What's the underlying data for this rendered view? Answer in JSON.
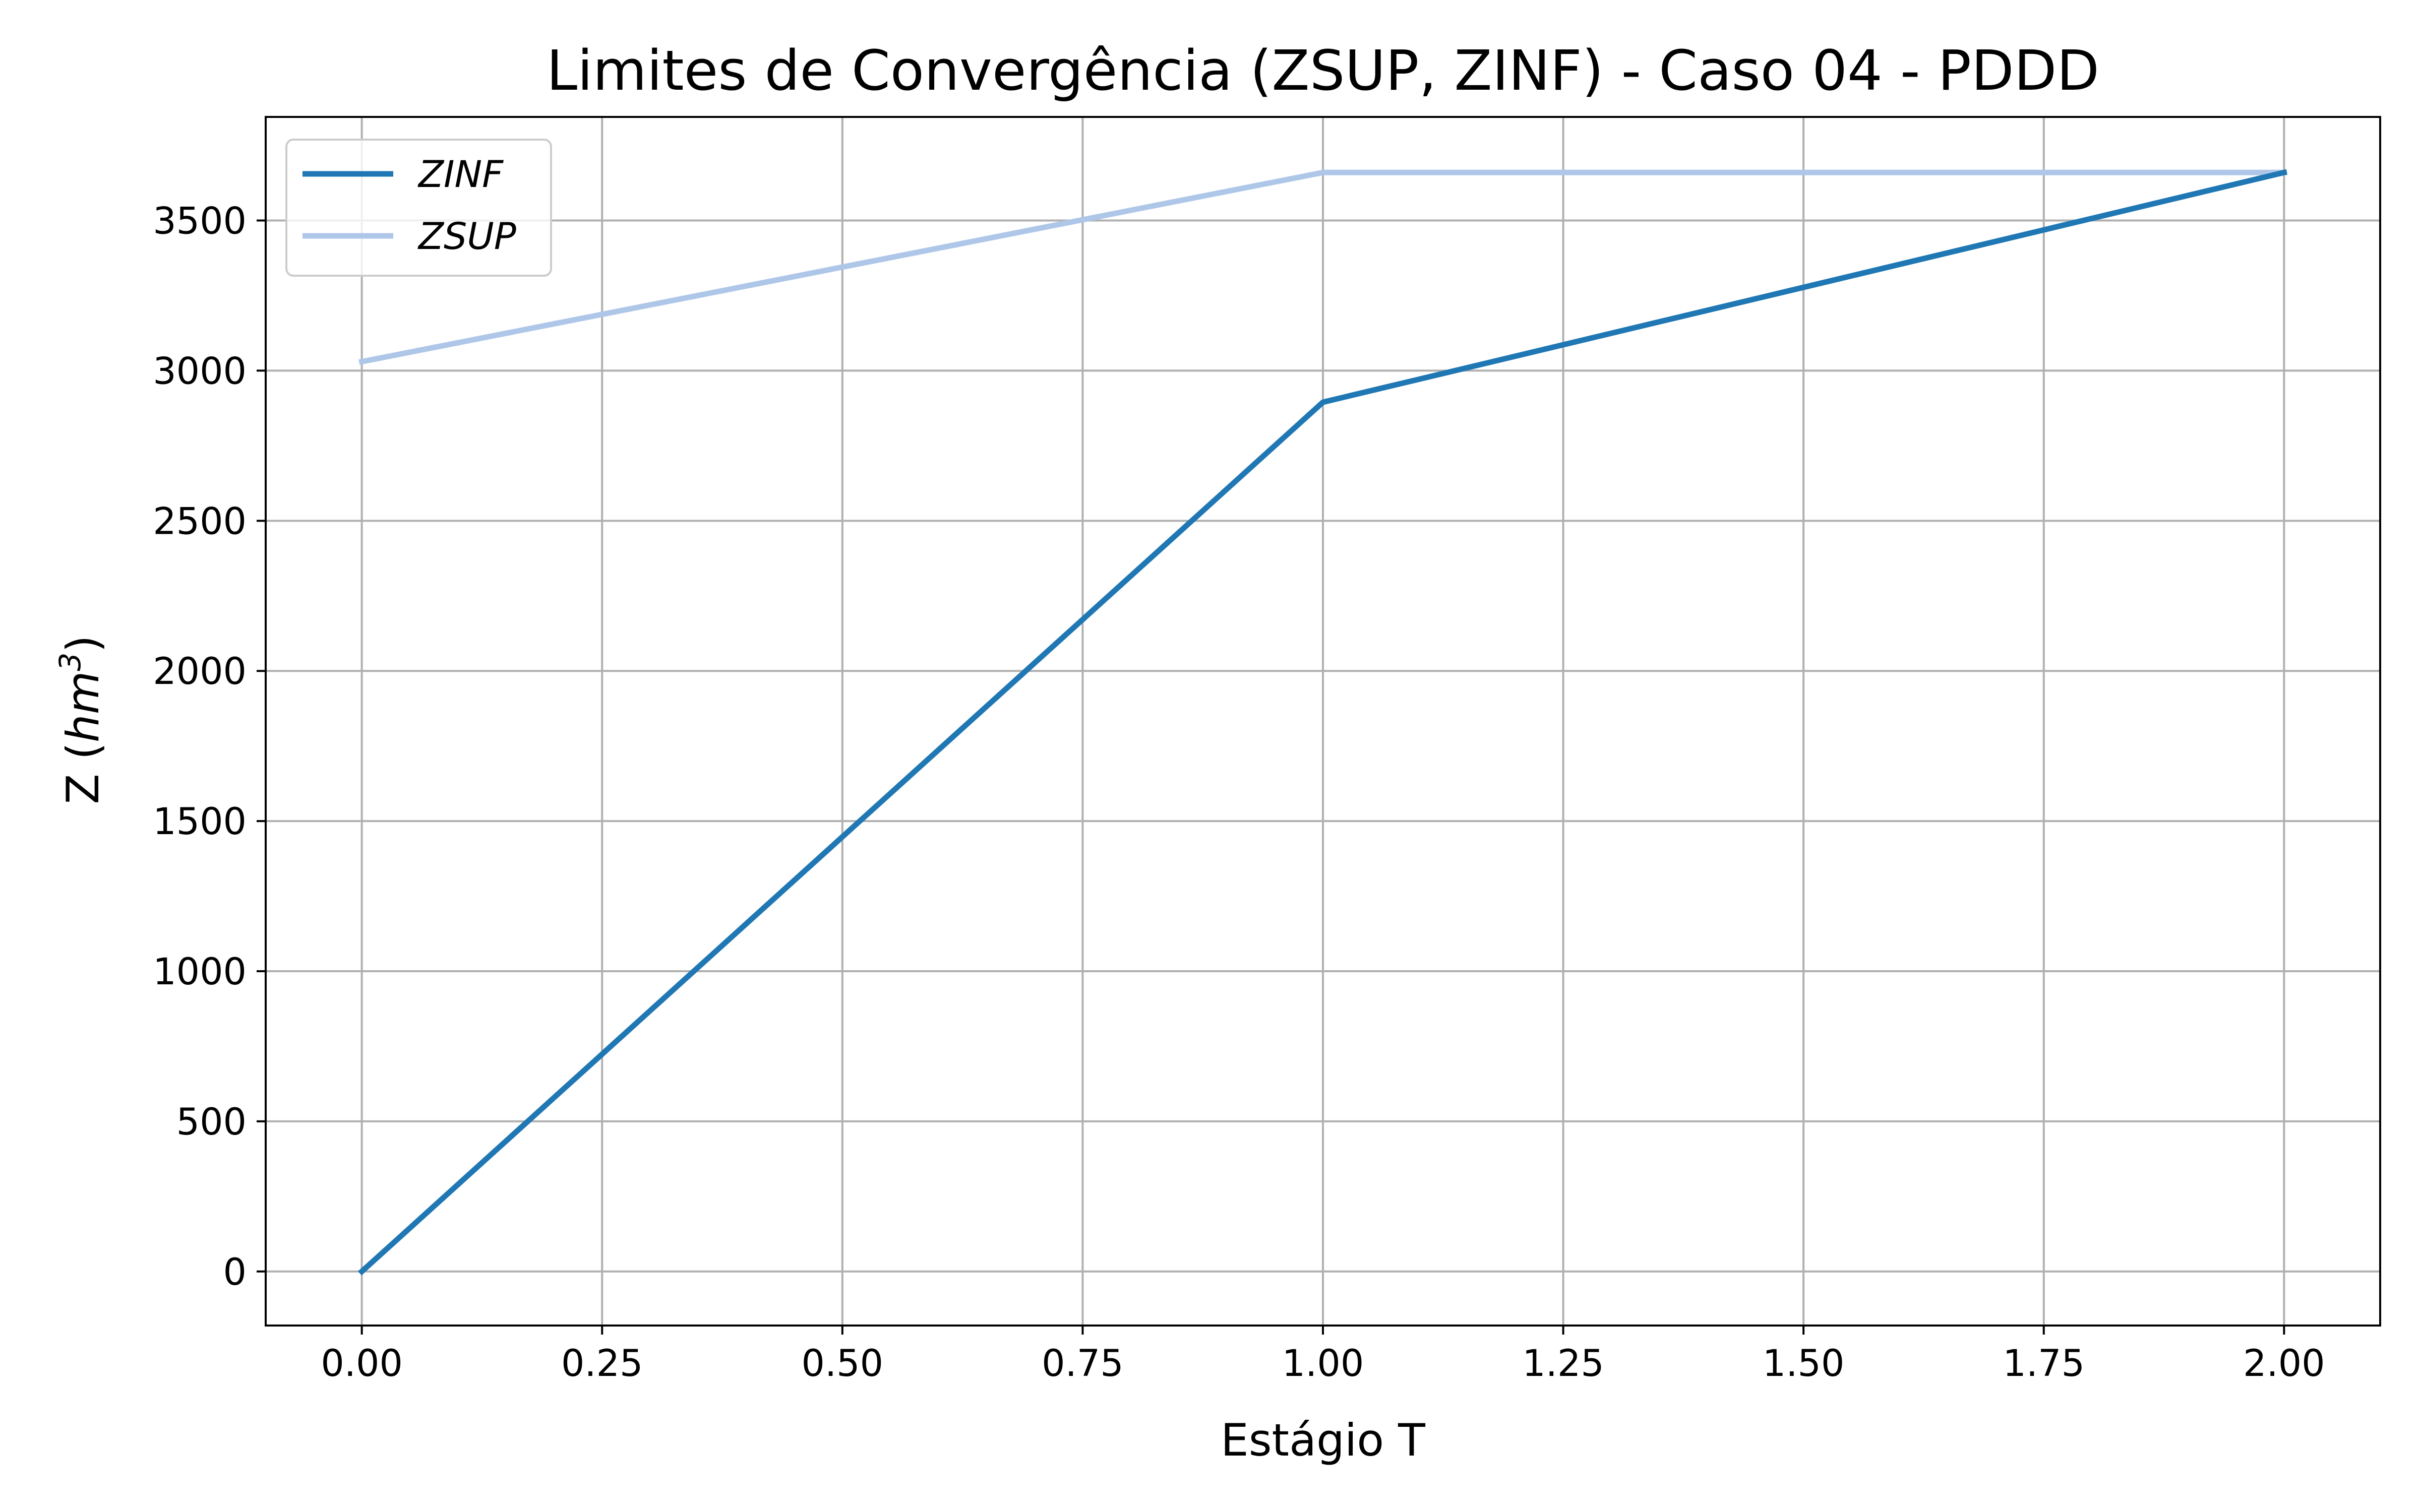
{
  "chart_data": {
    "type": "line",
    "title": "Limites de Convergência (ZSUP, ZINF) - Caso 04 - PDDD",
    "xlabel": "Estágio T",
    "ylabel": {
      "prefix": "Z (",
      "unit": "hm",
      "exponent": "3",
      "suffix": ")"
    },
    "x": [
      0.0,
      1.0,
      2.0
    ],
    "xlim": [
      -0.1,
      2.1
    ],
    "ylim": [
      -180,
      3845
    ],
    "xticks": [
      0.0,
      0.25,
      0.5,
      0.75,
      1.0,
      1.25,
      1.5,
      1.75,
      2.0
    ],
    "xtick_labels": [
      "0.00",
      "0.25",
      "0.50",
      "0.75",
      "1.00",
      "1.25",
      "1.50",
      "1.75",
      "2.00"
    ],
    "yticks": [
      0,
      500,
      1000,
      1500,
      2000,
      2500,
      3000,
      3500
    ],
    "ytick_labels": [
      "0",
      "500",
      "1000",
      "1500",
      "2000",
      "2500",
      "3000",
      "3500"
    ],
    "grid": true,
    "legend_position": "top-left",
    "series": [
      {
        "name": "ZINF",
        "values": [
          0,
          2895,
          3660
        ],
        "color": "#1f77b4"
      },
      {
        "name": "ZSUP",
        "values": [
          3030,
          3660,
          3660
        ],
        "color": "#aec7e8"
      }
    ]
  },
  "colors": {
    "grid": "#b0b0b0",
    "axes": "#000000",
    "legend_border": "#cccccc"
  }
}
